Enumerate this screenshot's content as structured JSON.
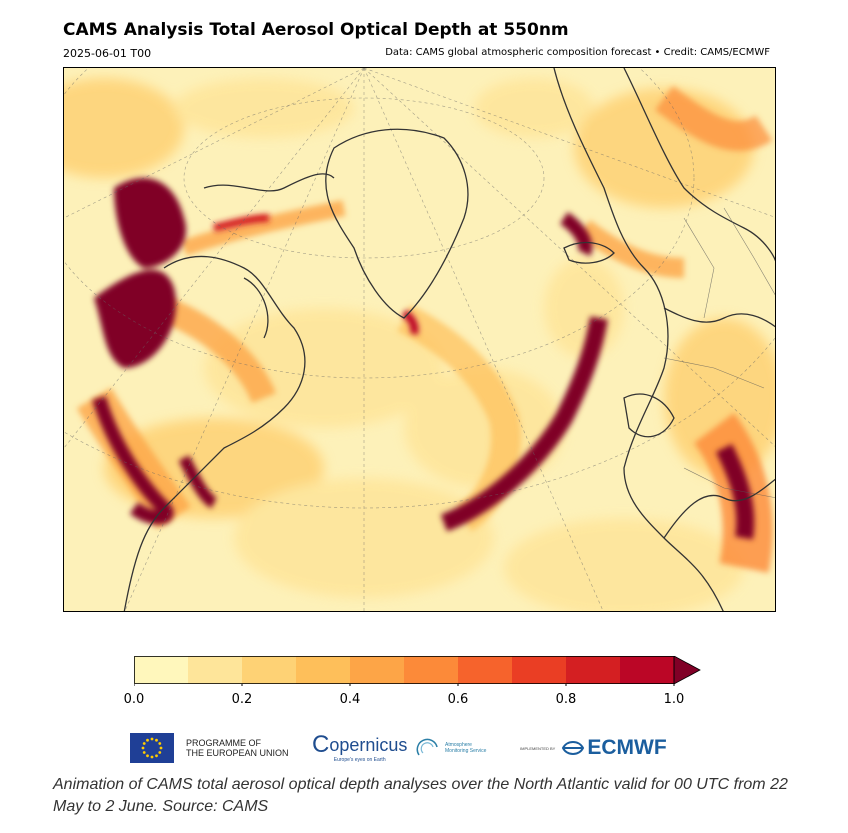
{
  "header": {
    "title": "CAMS Analysis Total Aerosol Optical Depth at 550nm",
    "valid_time": "2025-06-01 T00",
    "credit": "Data: CAMS global atmospheric composition forecast • Credit: CAMS/ECMWF"
  },
  "colorbar": {
    "ticks": [
      "0.0",
      "0.2",
      "0.4",
      "0.6",
      "0.8",
      "1.0"
    ],
    "min": 0.0,
    "max": 1.0,
    "extend": "max",
    "colors": [
      "#fff7bc",
      "#fee59a",
      "#fed275",
      "#febf5a",
      "#fda547",
      "#fc8a39",
      "#f6632c",
      "#ea3e24",
      "#d41f22",
      "#bb0626",
      "#800026"
    ]
  },
  "map": {
    "projection": "polar stereographic",
    "region": "North Atlantic",
    "background_color": "#fdf1b9",
    "plume_color": "#800026"
  },
  "logos": {
    "eu_line1": "PROGRAMME OF",
    "eu_line2": "THE EUROPEAN UNION",
    "copernicus": "opernicus",
    "copernicus_sub": "Europe's eyes on Earth",
    "ams_line1": "Atmosphere",
    "ams_line2": "Monitoring Service",
    "ecmwf_pre": "IMPLEMENTED BY",
    "ecmwf": "ECMWF"
  },
  "caption": "Animation of CAMS total aerosol optical depth analyses over the North Atlantic valid for 00 UTC from 22 May to 2 June. Source: CAMS"
}
